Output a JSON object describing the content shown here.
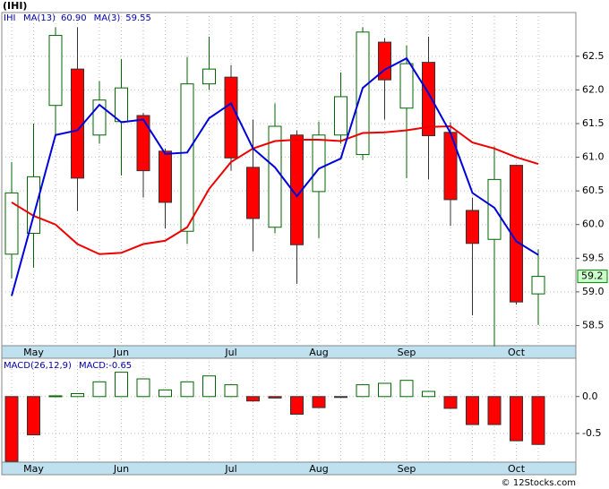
{
  "chart_data": [
    {
      "type": "candlestick",
      "title": "(IHI)",
      "symbol": "IHI",
      "categories": [
        null,
        "May",
        null,
        null,
        null,
        "Jun",
        null,
        null,
        null,
        null,
        "Jul",
        null,
        null,
        null,
        "Aug",
        null,
        null,
        null,
        "Sep",
        null,
        null,
        null,
        null,
        "Oct",
        null
      ],
      "open": [
        59.56,
        59.87,
        61.77,
        62.31,
        61.33,
        61.53,
        61.62,
        61.09,
        59.9,
        62.09,
        62.19,
        60.85,
        59.96,
        61.33,
        60.49,
        61.33,
        61.04,
        62.71,
        61.73,
        62.41,
        61.37,
        60.21,
        59.78,
        60.88,
        58.97
      ],
      "high": [
        60.93,
        61.5,
        62.93,
        62.93,
        62.13,
        62.46,
        61.66,
        61.13,
        62.49,
        62.79,
        62.37,
        61.56,
        61.8,
        61.4,
        61.53,
        62.26,
        62.93,
        62.77,
        62.66,
        62.79,
        61.52,
        60.4,
        61.16,
        60.89,
        59.63
      ],
      "low": [
        59.2,
        59.36,
        61.33,
        60.2,
        61.2,
        60.73,
        60.4,
        59.94,
        59.71,
        62.0,
        60.8,
        59.6,
        59.87,
        59.12,
        59.8,
        61.2,
        60.96,
        61.56,
        60.69,
        60.67,
        59.98,
        58.65,
        58.19,
        58.81,
        58.51
      ],
      "close": [
        60.47,
        60.71,
        62.81,
        60.69,
        61.85,
        62.03,
        60.8,
        60.33,
        62.09,
        62.31,
        60.99,
        60.09,
        61.46,
        59.7,
        61.33,
        61.9,
        62.86,
        62.15,
        62.39,
        61.32,
        60.37,
        59.72,
        60.67,
        58.85,
        59.23
      ],
      "up_color": "#006600",
      "down_color": "#ff0000",
      "series": [
        {
          "name": "MA(13)",
          "color": "#ee0000",
          "value_label": "60.90",
          "values": [
            60.33,
            60.13,
            60.0,
            59.71,
            59.56,
            59.58,
            59.71,
            59.76,
            59.96,
            60.53,
            60.93,
            61.13,
            61.24,
            61.26,
            61.26,
            61.24,
            61.36,
            61.37,
            61.4,
            61.45,
            61.46,
            61.22,
            61.13,
            61.0,
            60.9
          ]
        },
        {
          "name": "MA(3)",
          "color": "#0000dd",
          "value_label": "59.55",
          "values": [
            58.94,
            60.13,
            61.33,
            61.4,
            61.78,
            61.52,
            61.56,
            61.05,
            61.07,
            61.58,
            61.8,
            61.13,
            60.85,
            60.42,
            60.83,
            60.98,
            62.03,
            62.3,
            62.47,
            61.95,
            61.36,
            60.47,
            60.25,
            59.75,
            59.55
          ]
        }
      ],
      "last_label": "59.2",
      "ylim": [
        58.2,
        63.15
      ],
      "yticks": [
        58.5,
        {
          "value": 59,
          "label": "59.0"
        },
        59.5,
        {
          "value": 60,
          "label": "60.0"
        },
        60.5,
        {
          "value": 61,
          "label": "61.0"
        },
        61.5,
        {
          "value": 62,
          "label": "62.0"
        },
        62.5
      ],
      "grid": true
    },
    {
      "type": "bar",
      "legend": "MACD(26,12,9)",
      "value_label": "MACD:-0.65",
      "categories": [
        null,
        "May",
        null,
        null,
        null,
        "Jun",
        null,
        null,
        null,
        null,
        "Jul",
        null,
        null,
        null,
        "Aug",
        null,
        null,
        null,
        "Sep",
        null,
        null,
        null,
        null,
        "Oct",
        null
      ],
      "values": [
        -0.88,
        -0.52,
        0.01,
        0.04,
        0.2,
        0.33,
        0.24,
        0.09,
        0.2,
        0.28,
        0.16,
        -0.06,
        -0.02,
        -0.24,
        -0.15,
        -0.01,
        0.16,
        0.18,
        0.22,
        0.07,
        -0.16,
        -0.38,
        -0.38,
        -0.6,
        -0.65
      ],
      "up_color": "#006600",
      "down_color": "#ff0000",
      "ylim": [
        -0.89,
        0.52
      ],
      "yticks": [
        {
          "value": 0,
          "label": "0.0"
        },
        -0.5
      ],
      "grid": true
    }
  ],
  "footer": "© 12Stocks.com"
}
